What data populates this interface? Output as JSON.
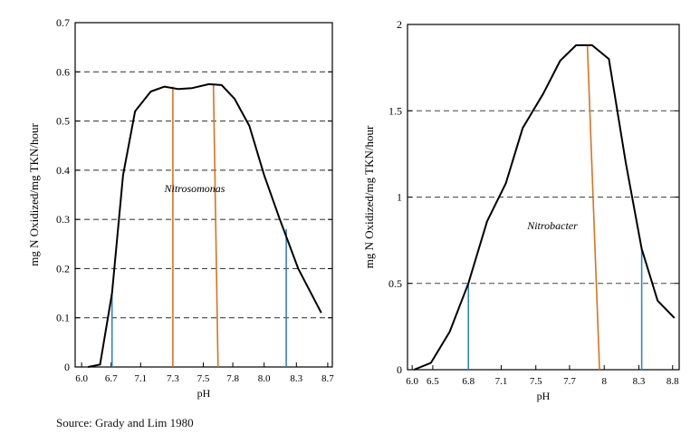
{
  "chart_data": [
    {
      "type": "line",
      "annotation": "Nitrosomonas",
      "xlabel": "pH",
      "ylabel": "mg N Oxidized/mg TKN/hour",
      "xlim": [
        5.93,
        8.72
      ],
      "ylim": [
        0,
        0.7
      ],
      "xticks": [
        {
          "value": 6.0,
          "label": "6.0"
        },
        {
          "value": 6.4,
          "label": "6.7"
        },
        {
          "value": 6.8,
          "label": "7.1"
        },
        {
          "value": 7.2,
          "label": "7.3"
        },
        {
          "value": 7.55,
          "label": "7.5"
        },
        {
          "value": 7.92,
          "label": "7.8"
        },
        {
          "value": 8.28,
          "label": "8.0"
        },
        {
          "value": 8.62,
          "label": "8.3"
        },
        {
          "value": 9.0,
          "label": "8.7"
        }
      ],
      "xticks_display": [
        {
          "pos": 6.0,
          "label": "6.0"
        },
        {
          "pos": 6.32,
          "label": "6.7"
        },
        {
          "pos": 6.64,
          "label": "7.1"
        },
        {
          "pos": 6.99,
          "label": "7.3"
        },
        {
          "pos": 7.32,
          "label": "7.5"
        },
        {
          "pos": 7.64,
          "label": "7.8"
        },
        {
          "pos": 7.98,
          "label": "8.0"
        },
        {
          "pos": 8.33,
          "label": "8.3"
        },
        {
          "pos": 8.67,
          "label": "8.7"
        }
      ],
      "yticks": [
        {
          "value": 0,
          "label": "0"
        },
        {
          "value": 0.1,
          "label": "0.1"
        },
        {
          "value": 0.2,
          "label": "0.2"
        },
        {
          "value": 0.3,
          "label": "0.3"
        },
        {
          "value": 0.4,
          "label": "0.4"
        },
        {
          "value": 0.5,
          "label": "0.5"
        },
        {
          "value": 0.6,
          "label": "0.6"
        },
        {
          "value": 0.7,
          "label": "0.7"
        }
      ],
      "gridlines_y": [
        0.1,
        0.2,
        0.3,
        0.4,
        0.5,
        0.6
      ],
      "curve": [
        [
          6.07,
          0
        ],
        [
          6.2,
          0.005
        ],
        [
          6.33,
          0.15
        ],
        [
          6.45,
          0.39
        ],
        [
          6.58,
          0.52
        ],
        [
          6.75,
          0.56
        ],
        [
          6.9,
          0.57
        ],
        [
          7.05,
          0.565
        ],
        [
          7.2,
          0.567
        ],
        [
          7.38,
          0.575
        ],
        [
          7.52,
          0.573
        ],
        [
          7.66,
          0.545
        ],
        [
          7.82,
          0.49
        ],
        [
          7.98,
          0.39
        ],
        [
          8.15,
          0.3
        ],
        [
          8.35,
          0.2
        ],
        [
          8.6,
          0.11
        ]
      ],
      "markers": [
        {
          "color": "#2e86c1",
          "x1": 6.33,
          "y1": 0.0,
          "x2": 6.33,
          "y2": 0.15
        },
        {
          "color": "#2e86c1",
          "x1": 8.22,
          "y1": 0.0,
          "x2": 8.22,
          "y2": 0.28
        },
        {
          "color": "#d9731f",
          "x1": 6.99,
          "y1": 0.0,
          "x2": 6.99,
          "y2": 0.57
        },
        {
          "color": "#d9731f",
          "x1": 7.48,
          "y1": 0.0,
          "x2": 7.43,
          "y2": 0.573
        }
      ]
    },
    {
      "type": "line",
      "annotation": "Nitrobacter",
      "xlabel": "pH",
      "ylabel": "mg N Oxidized/mg TKN/hour",
      "xlim": [
        5.95,
        8.85
      ],
      "ylim": [
        0,
        2
      ],
      "xticks_display": [
        {
          "pos": 6.0,
          "label": "6.0"
        },
        {
          "pos": 6.22,
          "label": "6.5"
        },
        {
          "pos": 6.6,
          "label": "6.8"
        },
        {
          "pos": 6.95,
          "label": "7.1"
        },
        {
          "pos": 7.32,
          "label": "7.5"
        },
        {
          "pos": 7.68,
          "label": "7.7"
        },
        {
          "pos": 8.05,
          "label": "8"
        },
        {
          "pos": 8.42,
          "label": "8.3"
        },
        {
          "pos": 8.78,
          "label": "8.8"
        }
      ],
      "yticks": [
        {
          "value": 0,
          "label": "0"
        },
        {
          "value": 0.5,
          "label": "0.5"
        },
        {
          "value": 1,
          "label": "1"
        },
        {
          "value": 1.5,
          "label": "1.5"
        },
        {
          "value": 2,
          "label": "2"
        }
      ],
      "gridlines_y": [
        0.5,
        1.0,
        1.5
      ],
      "curve": [
        [
          6.02,
          0.0
        ],
        [
          6.2,
          0.04
        ],
        [
          6.4,
          0.22
        ],
        [
          6.6,
          0.5
        ],
        [
          6.8,
          0.86
        ],
        [
          7.0,
          1.08
        ],
        [
          7.18,
          1.4
        ],
        [
          7.4,
          1.6
        ],
        [
          7.58,
          1.79
        ],
        [
          7.75,
          1.88
        ],
        [
          7.92,
          1.88
        ],
        [
          8.1,
          1.8
        ],
        [
          8.28,
          1.2
        ],
        [
          8.45,
          0.7
        ],
        [
          8.62,
          0.4
        ],
        [
          8.8,
          0.3
        ]
      ],
      "markers": [
        {
          "color": "#2e86c1",
          "x1": 6.6,
          "y1": 0.0,
          "x2": 6.6,
          "y2": 0.5
        },
        {
          "color": "#2e86c1",
          "x1": 8.45,
          "y1": 0.0,
          "x2": 8.45,
          "y2": 0.7
        },
        {
          "color": "#d9731f",
          "x1": 8.0,
          "y1": 0.0,
          "x2": 7.87,
          "y2": 1.88
        }
      ]
    }
  ],
  "footer": {
    "source": "Source:  Grady and Lim 1980"
  }
}
